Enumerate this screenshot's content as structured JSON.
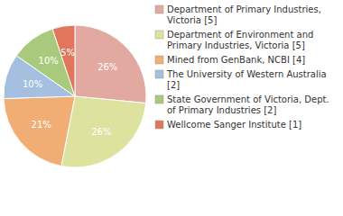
{
  "chart_data": {
    "type": "pie",
    "categories": [
      "Department of Primary Industries, Victoria [5]",
      "Department of Environment and Primary Industries, Victoria [5]",
      "Mined from GenBank, NCBI [4]",
      "The University of Western Australia [2]",
      "State Government of Victoria, Dept. of Primary Industries [2]",
      "Wellcome Sanger Institute [1]"
    ],
    "values": [
      26,
      26,
      21,
      10,
      10,
      5
    ],
    "value_labels": [
      "26%",
      "26%",
      "21%",
      "10%",
      "10%",
      "5%"
    ],
    "colors": [
      "#e1a9a0",
      "#dde39e",
      "#f0ae74",
      "#a4bfe0",
      "#a9c97c",
      "#e0775c"
    ],
    "data_labels": true,
    "legend": "upper right"
  }
}
